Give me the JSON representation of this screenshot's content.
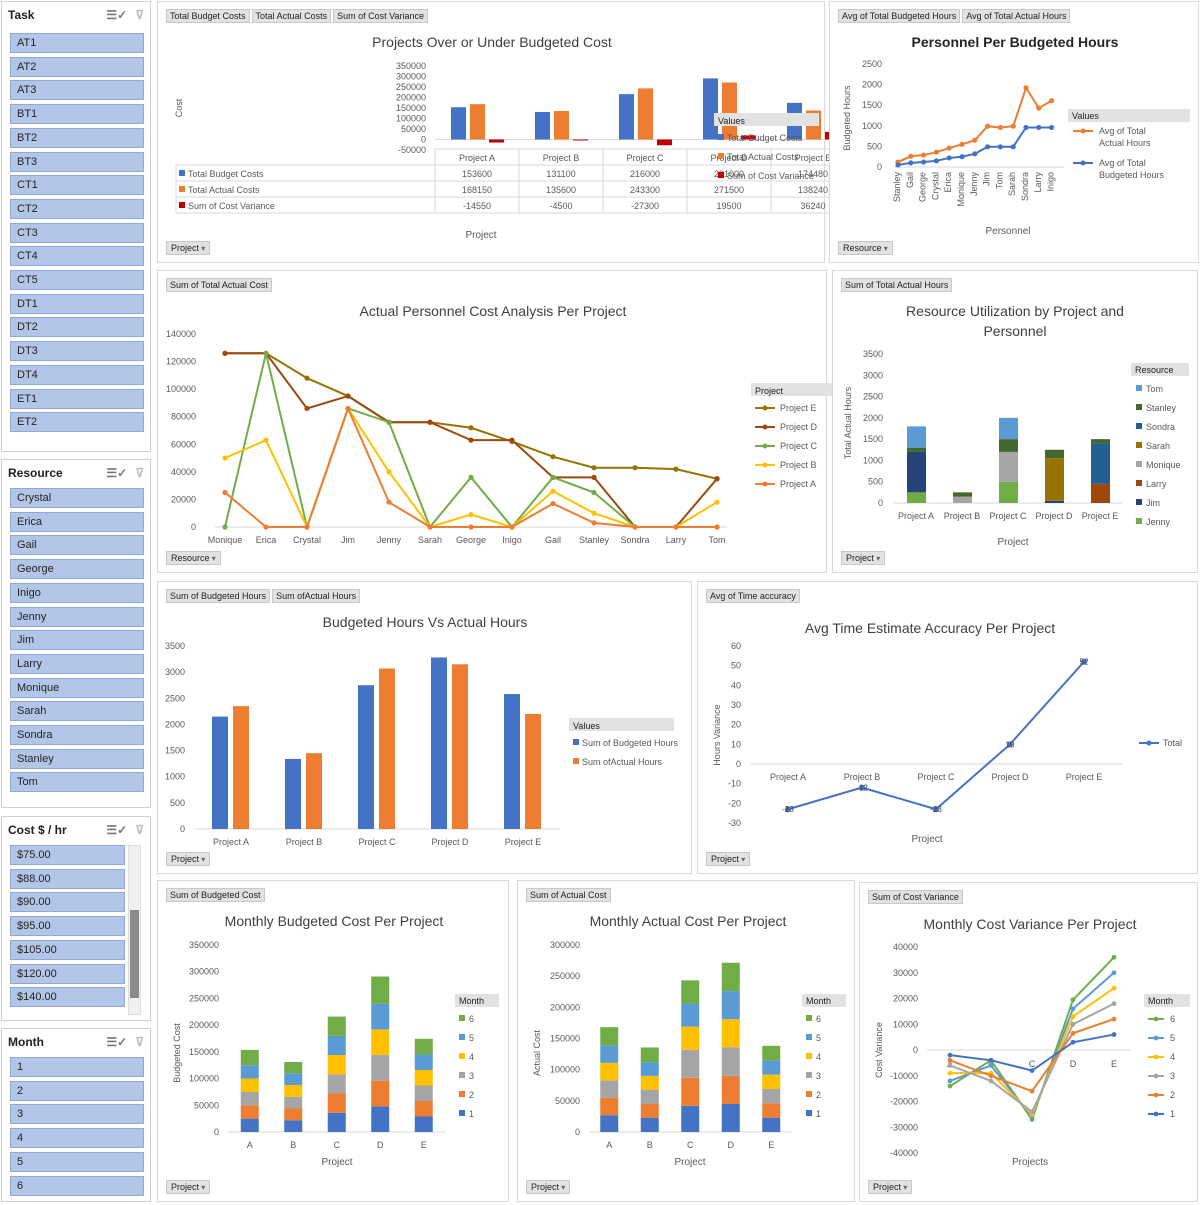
{
  "slicers": {
    "task": {
      "title": "Task",
      "items": [
        "AT1",
        "AT2",
        "AT3",
        "BT1",
        "BT2",
        "BT3",
        "CT1",
        "CT2",
        "CT3",
        "CT4",
        "CT5",
        "DT1",
        "DT2",
        "DT3",
        "DT4",
        "ET1",
        "ET2"
      ]
    },
    "resource": {
      "title": "Resource",
      "items": [
        "Crystal",
        "Erica",
        "Gail",
        "George",
        "Inigo",
        "Jenny",
        "Jim",
        "Larry",
        "Monique",
        "Sarah",
        "Sondra",
        "Stanley",
        "Tom"
      ]
    },
    "cost": {
      "title": "Cost $ / hr",
      "items": [
        "$75.00",
        "$88.00",
        "$90.00",
        "$95.00",
        "$105.00",
        "$120.00",
        "$140.00"
      ]
    },
    "month": {
      "title": "Month",
      "items": [
        "1",
        "2",
        "3",
        "4",
        "5",
        "6"
      ]
    }
  },
  "colors": {
    "blue": "#4472c4",
    "orange": "#ed7d31",
    "red": "#c00000",
    "gray": "#a5a5a5",
    "yellow": "#ffc000",
    "lightblue": "#5b9bd5",
    "green": "#70ad47",
    "darkred": "#9e480e",
    "olive": "#997300",
    "navy": "#264478",
    "darkgreen": "#43682b",
    "teal": "#255e91"
  },
  "panels": {
    "p1": {
      "buttons": [
        "Total Budget Costs",
        "Total Actual Costs",
        "Sum of Cost Variance"
      ],
      "axis_button": "Project"
    },
    "p2": {
      "buttons": [
        "Avg of Total Budgeted Hours",
        "Avg of Total Actual Hours"
      ],
      "axis_button": "Resource"
    },
    "p3": {
      "buttons": [
        "Sum of Total Actual Cost"
      ],
      "axis_button": "Resource"
    },
    "p4": {
      "buttons": [
        "Sum of Total Actual Hours"
      ],
      "axis_button": "Project"
    },
    "p5": {
      "buttons": [
        "Sum of Budgeted Hours",
        "Sum ofActual Hours"
      ],
      "axis_button": "Project"
    },
    "p6": {
      "buttons": [
        "Avg of Time accuracy"
      ],
      "axis_button": "Project"
    },
    "p7": {
      "buttons": [
        "Sum of Budgeted Cost"
      ],
      "axis_button": "Project"
    },
    "p8": {
      "buttons": [
        "Sum of Actual Cost"
      ],
      "axis_button": "Project"
    },
    "p9": {
      "buttons": [
        "Sum of Cost Variance"
      ],
      "axis_button": "Project"
    }
  },
  "chart_data": [
    {
      "id": "c1",
      "type": "bar",
      "title": "Projects Over or Under Budgeted Cost",
      "xlabel": "Project",
      "ylabel": "Cost",
      "ylim": [
        -50000,
        350000
      ],
      "yticks": [
        "350000",
        "300000",
        "250000",
        "200000",
        "150000",
        "100000",
        "50000",
        "0",
        "-50000"
      ],
      "categories": [
        "Project A",
        "Project B",
        "Project C",
        "Project D",
        "Project E"
      ],
      "legend_title": "Values",
      "legend_position": "right",
      "series": [
        {
          "name": "Total Budget Costs",
          "values": [
            153600,
            131100,
            216000,
            291000,
            174480
          ]
        },
        {
          "name": "Total Actual Costs",
          "values": [
            168150,
            135600,
            243300,
            271500,
            138240
          ]
        },
        {
          "name": "Sum of Cost Variance",
          "values": [
            -14550,
            -4500,
            -27300,
            19500,
            36240
          ]
        }
      ],
      "table": [
        [
          "153600",
          "131100",
          "216000",
          "291000",
          "174480"
        ],
        [
          "168150",
          "135600",
          "243300",
          "271500",
          "138240"
        ],
        [
          "-14550",
          "-4500",
          "-27300",
          "19500",
          "36240"
        ]
      ]
    },
    {
      "id": "c2",
      "type": "line",
      "title": "Personnel Per Budgeted Hours",
      "xlabel": "Personnel",
      "ylabel": "Budgeted Hours",
      "ylim": [
        0,
        2500
      ],
      "yticks": [
        "2500",
        "2000",
        "1500",
        "1000",
        "500",
        "0"
      ],
      "categories": [
        "Stanley",
        "Gail",
        "George",
        "Crystal",
        "Erica",
        "Monique",
        "Jenny",
        "Jim",
        "Tom",
        "Sarah",
        "Sondra",
        "Larry",
        "Inigo"
      ],
      "legend_title": "Values",
      "legend_position": "right",
      "series": [
        {
          "name": "Avg of Total Actual Hours",
          "values": [
            120,
            260,
            290,
            360,
            460,
            550,
            650,
            990,
            960,
            990,
            1920,
            1430,
            1610
          ]
        },
        {
          "name": "Avg of Total Budgeted Hours",
          "values": [
            50,
            100,
            120,
            150,
            220,
            250,
            320,
            490,
            490,
            490,
            960,
            960,
            960
          ]
        }
      ]
    },
    {
      "id": "c3",
      "type": "line",
      "title": "Actual Personnel Cost Analysis Per Project",
      "xlabel": "",
      "ylabel": "",
      "ylim": [
        0,
        140000
      ],
      "yticks": [
        "140000",
        "120000",
        "100000",
        "80000",
        "60000",
        "40000",
        "20000",
        "0"
      ],
      "categories": [
        "Monique",
        "Erica",
        "Crystal",
        "Jim",
        "Jenny",
        "Sarah",
        "George",
        "Inigo",
        "Gail",
        "Stanley",
        "Sondra",
        "Larry",
        "Tom"
      ],
      "legend_title": "Project",
      "legend_position": "right",
      "series": [
        {
          "name": "Project E",
          "values": [
            126000,
            126000,
            108000,
            95000,
            76000,
            76000,
            72000,
            62000,
            51000,
            43000,
            43000,
            42000,
            35000
          ]
        },
        {
          "name": "Project D",
          "values": [
            126000,
            126000,
            86000,
            95000,
            76000,
            76000,
            63000,
            63000,
            36000,
            36000,
            0,
            0,
            35000
          ]
        },
        {
          "name": "Project C",
          "values": [
            0,
            126000,
            0,
            86000,
            76000,
            0,
            36000,
            0,
            36000,
            25000,
            0,
            0,
            0
          ]
        },
        {
          "name": "Project B",
          "values": [
            50000,
            63000,
            0,
            86000,
            40000,
            0,
            9000,
            0,
            26000,
            10000,
            0,
            0,
            18000
          ]
        },
        {
          "name": "Project A",
          "values": [
            25000,
            0,
            0,
            86000,
            18000,
            0,
            0,
            0,
            17000,
            3000,
            0,
            0,
            0
          ]
        }
      ]
    },
    {
      "id": "c4",
      "type": "bar",
      "title": "Resource Utilization by Project and Personnel",
      "xlabel": "Project",
      "ylabel": "Total Actual Hours",
      "ylim": [
        0,
        3500
      ],
      "yticks": [
        "3500",
        "3000",
        "2500",
        "2000",
        "1500",
        "1000",
        "500",
        "0"
      ],
      "categories": [
        "Project A",
        "Project B",
        "Project C",
        "Project D",
        "Project E"
      ],
      "legend_title": "Resource",
      "legend_position": "right",
      "series": [
        {
          "name": "Jenny",
          "values": [
            250,
            0,
            500,
            0,
            0
          ]
        },
        {
          "name": "Jim",
          "values": [
            950,
            0,
            0,
            50,
            0
          ]
        },
        {
          "name": "Larry",
          "values": [
            0,
            0,
            0,
            0,
            450
          ]
        },
        {
          "name": "Monique",
          "values": [
            0,
            150,
            700,
            0,
            0
          ]
        },
        {
          "name": "Sarah",
          "values": [
            0,
            0,
            0,
            1000,
            0
          ]
        },
        {
          "name": "Sondra",
          "values": [
            0,
            0,
            0,
            0,
            950
          ]
        },
        {
          "name": "Stanley",
          "values": [
            100,
            100,
            300,
            200,
            100
          ]
        },
        {
          "name": "Tom",
          "values": [
            500,
            0,
            500,
            0,
            0
          ]
        }
      ]
    },
    {
      "id": "c5",
      "type": "bar",
      "title": "Budgeted Hours Vs Actual Hours",
      "xlabel": "",
      "ylabel": "",
      "ylim": [
        0,
        3500
      ],
      "yticks": [
        "3500",
        "3000",
        "2500",
        "2000",
        "1500",
        "1000",
        "500",
        "0"
      ],
      "categories": [
        "Project A",
        "Project B",
        "Project C",
        "Project D",
        "Project E"
      ],
      "legend_title": "Values",
      "legend_position": "right",
      "series": [
        {
          "name": "Sum of Budgeted Hours",
          "values": [
            2150,
            1340,
            2750,
            3280,
            2580
          ]
        },
        {
          "name": "Sum ofActual Hours",
          "values": [
            2350,
            1450,
            3070,
            3150,
            2200
          ]
        }
      ]
    },
    {
      "id": "c6",
      "type": "line",
      "title": "Avg Time Estimate Accuracy Per Project",
      "xlabel": "Project",
      "ylabel": "Hours Variance",
      "ylim": [
        -30,
        60
      ],
      "yticks": [
        "60",
        "50",
        "40",
        "30",
        "20",
        "10",
        "0",
        "-10",
        "-20",
        "-30"
      ],
      "categories": [
        "Project A",
        "Project B",
        "Project C",
        "Project D",
        "Project E"
      ],
      "legend_position": "right",
      "series": [
        {
          "name": "Total",
          "values": [
            -23,
            -12,
            -23,
            10,
            52
          ]
        }
      ],
      "point_labels": [
        "-23",
        "-12",
        "-23",
        "10",
        "52"
      ]
    },
    {
      "id": "c7",
      "type": "bar",
      "title": "Monthly Budgeted Cost Per Project",
      "xlabel": "Project",
      "ylabel": "Budgeted Cost",
      "ylim": [
        0,
        350000
      ],
      "yticks": [
        "350000",
        "300000",
        "250000",
        "200000",
        "150000",
        "100000",
        "50000",
        "0"
      ],
      "categories": [
        "A",
        "B",
        "C",
        "D",
        "E"
      ],
      "legend_title": "Month",
      "legend_position": "right",
      "series": [
        {
          "name": "1",
          "values": [
            25000,
            22000,
            36000,
            48000,
            29000
          ]
        },
        {
          "name": "2",
          "values": [
            25000,
            22000,
            36000,
            48000,
            29000
          ]
        },
        {
          "name": "3",
          "values": [
            25000,
            22000,
            36000,
            48000,
            29000
          ]
        },
        {
          "name": "4",
          "values": [
            25000,
            22000,
            36000,
            48000,
            29000
          ]
        },
        {
          "name": "5",
          "values": [
            25000,
            22000,
            36000,
            48000,
            29000
          ]
        },
        {
          "name": "6",
          "values": [
            28600,
            21100,
            36000,
            51000,
            29480
          ]
        }
      ]
    },
    {
      "id": "c8",
      "type": "bar",
      "title": "Monthly Actual Cost Per Project",
      "xlabel": "Project",
      "ylabel": "Actual Cost",
      "ylim": [
        0,
        300000
      ],
      "yticks": [
        "300000",
        "250000",
        "200000",
        "150000",
        "100000",
        "50000",
        "0"
      ],
      "categories": [
        "A",
        "B",
        "C",
        "D",
        "E"
      ],
      "legend_title": "Month",
      "legend_position": "right",
      "series": [
        {
          "name": "1",
          "values": [
            27000,
            23000,
            42000,
            45000,
            23000
          ]
        },
        {
          "name": "2",
          "values": [
            28000,
            22000,
            45000,
            45000,
            23000
          ]
        },
        {
          "name": "3",
          "values": [
            28000,
            23000,
            45000,
            46000,
            23000
          ]
        },
        {
          "name": "4",
          "values": [
            28000,
            22000,
            37000,
            45000,
            23000
          ]
        },
        {
          "name": "5",
          "values": [
            28000,
            22000,
            37000,
            45000,
            23000
          ]
        },
        {
          "name": "6",
          "values": [
            29150,
            23600,
            37300,
            45500,
            23240
          ]
        }
      ]
    },
    {
      "id": "c9",
      "type": "line",
      "title": "Monthly  Cost Variance Per Project",
      "xlabel": "Projects",
      "ylabel": "Cost Variance",
      "ylim": [
        -40000,
        40000
      ],
      "yticks": [
        "40000",
        "30000",
        "20000",
        "10000",
        "0",
        "-10000",
        "-20000",
        "-30000",
        "-40000"
      ],
      "categories": [
        "A",
        "B",
        "C",
        "D",
        "E"
      ],
      "legend_title": "Month",
      "legend_position": "right",
      "series": [
        {
          "name": "6",
          "values": [
            -14000,
            -4000,
            -27000,
            19500,
            36000
          ]
        },
        {
          "name": "5",
          "values": [
            -12000,
            -6000,
            -26000,
            16000,
            30000
          ]
        },
        {
          "name": "4",
          "values": [
            -9000,
            -9000,
            -25000,
            13000,
            24000
          ]
        },
        {
          "name": "3",
          "values": [
            -6000,
            -12000,
            -24000,
            10000,
            18000
          ]
        },
        {
          "name": "2",
          "values": [
            -4000,
            -10000,
            -16000,
            6500,
            12000
          ]
        },
        {
          "name": "1",
          "values": [
            -2000,
            -4000,
            -8000,
            3000,
            6000
          ]
        }
      ]
    }
  ]
}
